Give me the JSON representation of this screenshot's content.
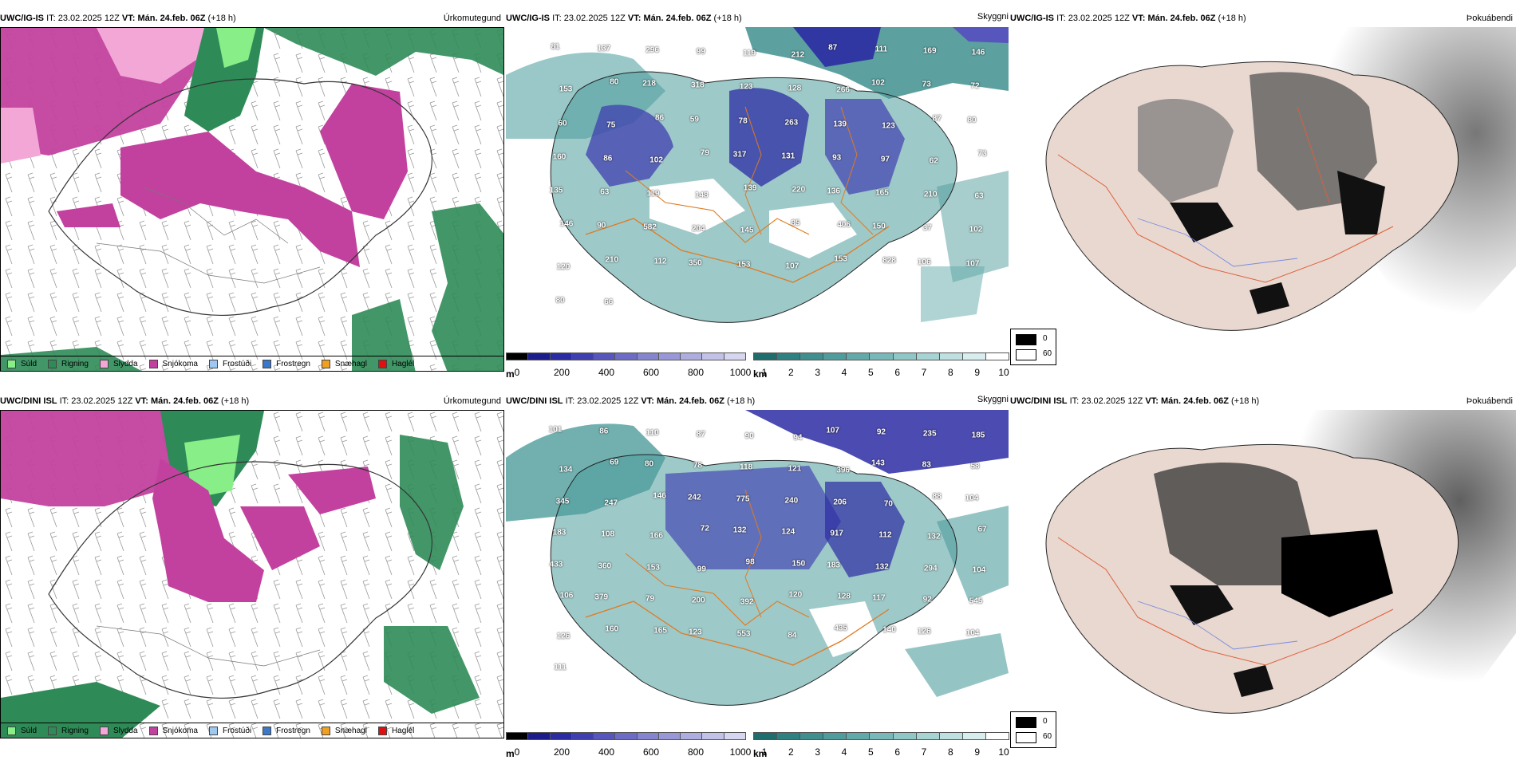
{
  "rows": [
    {
      "model": "UWC/IG-IS",
      "it_label": "IT:",
      "it_value": "23.02.2025 12Z",
      "vt_label": "VT:",
      "vt_value": "Mán. 24.feb. 06Z",
      "lead": "(+18 h)",
      "panel_titles": [
        "Úrkomutegund",
        "Skyggni",
        "Þokuábendi"
      ],
      "visibility_numbers": [
        "81",
        "137",
        "296",
        "99",
        "119",
        "212",
        "87",
        "111",
        "169",
        "146",
        "153",
        "80",
        "218",
        "318",
        "123",
        "128",
        "266",
        "102",
        "73",
        "72",
        "60",
        "75",
        "86",
        "59",
        "78",
        "263",
        "139",
        "123",
        "87",
        "80",
        "160",
        "86",
        "102",
        "79",
        "317",
        "131",
        "93",
        "97",
        "62",
        "73",
        "135",
        "63",
        "119",
        "148",
        "139",
        "220",
        "136",
        "165",
        "210",
        "63",
        "146",
        "90",
        "582",
        "204",
        "145",
        "85",
        "406",
        "150",
        "37",
        "102",
        "120",
        "210",
        "112",
        "350",
        "153",
        "107",
        "153",
        "828",
        "106",
        "107",
        "80",
        "66"
      ]
    },
    {
      "model": "UWC/DINI ISL",
      "it_label": "IT:",
      "it_value": "23.02.2025 12Z",
      "vt_label": "VT:",
      "vt_value": "Mán. 24.feb. 06Z",
      "lead": "(+18 h)",
      "panel_titles": [
        "Úrkomutegund",
        "Skyggni",
        "Þokuábendi"
      ],
      "visibility_numbers": [
        "101",
        "86",
        "110",
        "87",
        "90",
        "94",
        "107",
        "92",
        "235",
        "185",
        "134",
        "69",
        "80",
        "78",
        "118",
        "121",
        "396",
        "143",
        "83",
        "58",
        "345",
        "247",
        "146",
        "242",
        "775",
        "240",
        "206",
        "70",
        "88",
        "104",
        "183",
        "108",
        "166",
        "72",
        "132",
        "124",
        "917",
        "112",
        "132",
        "67",
        "433",
        "360",
        "153",
        "99",
        "98",
        "150",
        "183",
        "132",
        "294",
        "104",
        "106",
        "379",
        "79",
        "200",
        "392",
        "120",
        "128",
        "117",
        "92",
        "545",
        "126",
        "160",
        "165",
        "123",
        "553",
        "84",
        "435",
        "140",
        "126",
        "104",
        "111"
      ]
    }
  ],
  "precip_legend": [
    {
      "label": "Súld",
      "color": "#88ee88"
    },
    {
      "label": "Rigning",
      "color": "#2e8b57"
    },
    {
      "label": "Slydda",
      "color": "#f2a7d6"
    },
    {
      "label": "Snjókoma",
      "color": "#c2419e"
    },
    {
      "label": "Frostúði",
      "color": "#9fc8f0"
    },
    {
      "label": "Frostregn",
      "color": "#3a78c8"
    },
    {
      "label": "Snæhagl",
      "color": "#f0a020"
    },
    {
      "label": "Haglél",
      "color": "#e01010"
    }
  ],
  "ceiling_bar": {
    "unit": "m",
    "ticks": [
      "0",
      "200",
      "400",
      "600",
      "800",
      "1000"
    ],
    "colors": [
      "#000000",
      "#1c1c8c",
      "#2b2ba3",
      "#3f3fb0",
      "#5656bc",
      "#6c6cc6",
      "#8484cf",
      "#9898d8",
      "#adade0",
      "#c2c2e8",
      "#d6d6f0"
    ]
  },
  "visibility_bar": {
    "unit": "km",
    "ticks": [
      "1",
      "2",
      "3",
      "4",
      "5",
      "6",
      "7",
      "8",
      "9",
      "10"
    ],
    "colors": [
      "#1f6e6e",
      "#2f8080",
      "#3f8f8f",
      "#4f9c9c",
      "#62aaaa",
      "#78b8b8",
      "#8fc6c6",
      "#a6d3d3",
      "#bfe0e0",
      "#d8eded",
      "#ffffff"
    ]
  },
  "fog_legend": {
    "items": [
      {
        "label": "0",
        "color": "#000000"
      },
      {
        "label": "60",
        "color": "#ffffff"
      }
    ]
  }
}
